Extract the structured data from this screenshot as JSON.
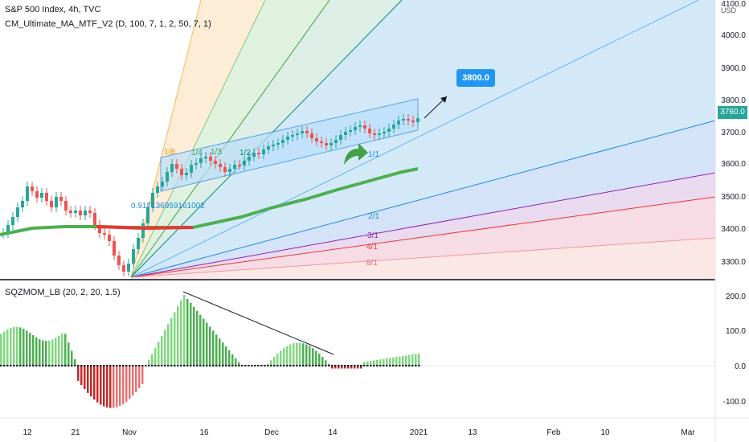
{
  "header": {
    "title": "S&P 500 Index, 4h, TVC",
    "indicator": "CM_Ultimate_MA_MTF_V2 (D, 100, 7, 1, 2, 50, 7, 1)",
    "currency": "USD"
  },
  "price_axis": {
    "ticks": [
      "4100.0",
      "4000.0",
      "3900.0",
      "3800.0",
      "3700.0",
      "3600.0",
      "3500.0",
      "3400.0",
      "3300.0"
    ],
    "last_price": "3760.0",
    "last_price_color": "#26a69a"
  },
  "osc_axis": {
    "ticks": [
      "200.0",
      "100.0",
      "0.0",
      "-100.0"
    ]
  },
  "osc_legend": "SQZMOM_LB (20, 2, 20, 1.5)",
  "time_axis": {
    "ticks": [
      "12",
      "21",
      "Nov",
      "16",
      "Dec",
      "14",
      "2021",
      "13",
      "Feb",
      "10",
      "Mar"
    ]
  },
  "annotations": {
    "callout": "3800.0",
    "fib_value": "0.917136959161002",
    "fan_labels": [
      "1/8",
      "1/4",
      "1/3",
      "1/2",
      "1/1",
      "2/1",
      "3/1",
      "4/1",
      "8/1"
    ]
  },
  "colors": {
    "up": "#26a69a",
    "down": "#ef5350",
    "ma_green": "#4caf50",
    "ma_red": "#e53935",
    "channel": "#2196f3",
    "callout_bg": "#2196f3",
    "osc_green_strong": "#4caf50",
    "osc_green_light": "#81d97f",
    "osc_red_strong": "#c62828",
    "osc_red_light": "#e57373"
  }
}
